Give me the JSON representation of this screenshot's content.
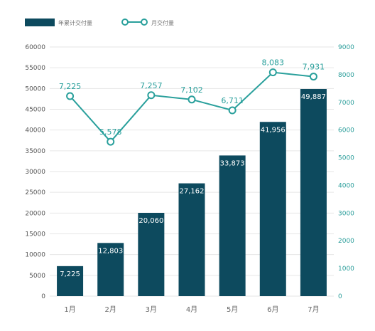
{
  "chart_data": {
    "type": "bar+line",
    "categories": [
      "1月",
      "2月",
      "3月",
      "4月",
      "5月",
      "6月",
      "7月"
    ],
    "series": [
      {
        "name": "年累计交付量",
        "type": "bar",
        "axis": "left",
        "values": [
          7225,
          12803,
          20060,
          27162,
          33873,
          41956,
          49887
        ],
        "labels": [
          "7,225",
          "12,803",
          "20,060",
          "27,162",
          "33,873",
          "41,956",
          "49,887"
        ]
      },
      {
        "name": "月交付量",
        "type": "line",
        "axis": "right",
        "values": [
          7225,
          5578,
          7257,
          7102,
          6711,
          8083,
          7931
        ],
        "labels": [
          "7,225",
          "5,578",
          "7,257",
          "7,102",
          "6,711",
          "8,083",
          "7,931"
        ]
      }
    ],
    "y_left": {
      "min": 0,
      "max": 60000,
      "step": 5000
    },
    "y_right": {
      "min": 0,
      "max": 9000,
      "step": 1000
    },
    "legend_position": "top-left",
    "grid": true,
    "colors": {
      "bar": "#0d4a5e",
      "line": "#2aa09c",
      "grid": "#e6e6e6"
    }
  }
}
